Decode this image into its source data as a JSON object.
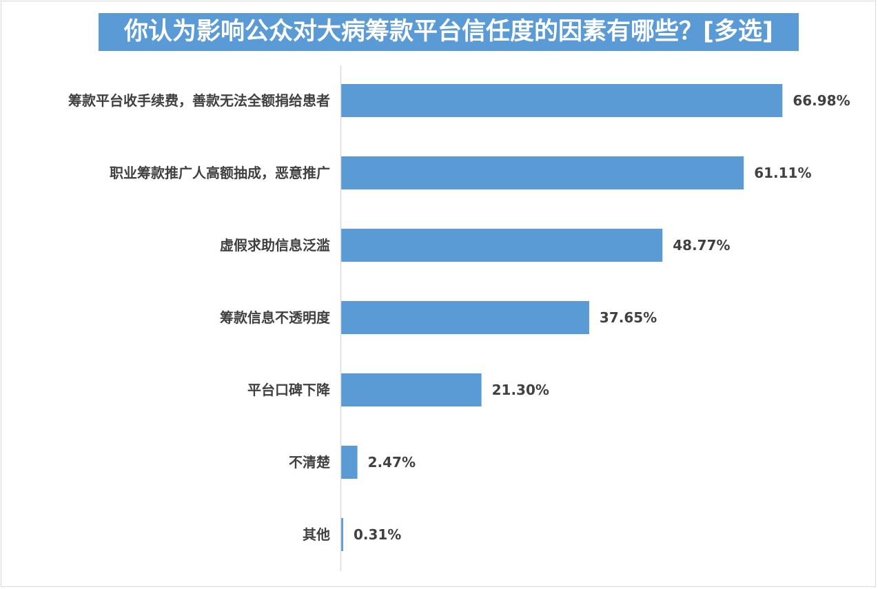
{
  "chart_data": {
    "type": "bar",
    "orientation": "horizontal",
    "title": "你认为影响公众对大病筹款平台信任度的因素有哪些？[多选]",
    "categories": [
      "筹款平台收手续费，善款无法全额捐给患者",
      "职业筹款推广人高额抽成，恶意推广",
      "虚假求助信息泛滥",
      "筹款信息不透明度",
      "平台口碑下降",
      "不清楚",
      "其他"
    ],
    "values": [
      66.98,
      61.11,
      48.77,
      37.65,
      21.3,
      2.47,
      0.31
    ],
    "value_labels": [
      "66.98%",
      "61.11%",
      "48.77%",
      "37.65%",
      "21.30%",
      "2.47%",
      "0.31%"
    ],
    "unit": "%",
    "xlim": [
      0,
      100
    ],
    "grid": false,
    "legend": "none",
    "colors": {
      "bar": "#5b9bd5",
      "title_bg": "#5b9bd5",
      "title_text": "#ffffff",
      "label_text": "#404040",
      "axis": "#d9d9d9"
    }
  }
}
